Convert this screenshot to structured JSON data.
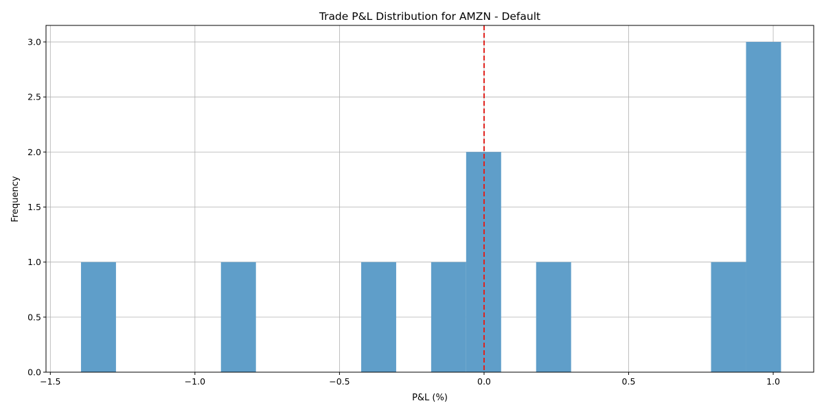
{
  "chart_data": {
    "type": "bar",
    "title": "Trade P&L Distribution for AMZN - Default",
    "xlabel": "P&L (%)",
    "ylabel": "Frequency",
    "xlim": [
      -1.515,
      1.14
    ],
    "ylim": [
      0,
      3.15
    ],
    "grid": true,
    "bar_color": "#5f9ec9",
    "reference_line": {
      "x": 0.0,
      "color": "#e0201b",
      "style": "dashed"
    },
    "xticks": [
      {
        "value": -1.5,
        "label": "−1.5"
      },
      {
        "value": -1.0,
        "label": "−1.0"
      },
      {
        "value": -0.5,
        "label": "−0.5"
      },
      {
        "value": 0.0,
        "label": "0.0"
      },
      {
        "value": 0.5,
        "label": "0.5"
      },
      {
        "value": 1.0,
        "label": "1.0"
      }
    ],
    "yticks": [
      {
        "value": 0.0,
        "label": "0.0"
      },
      {
        "value": 0.5,
        "label": "0.5"
      },
      {
        "value": 1.0,
        "label": "1.0"
      },
      {
        "value": 1.5,
        "label": "1.5"
      },
      {
        "value": 2.0,
        "label": "2.0"
      },
      {
        "value": 2.5,
        "label": "2.5"
      },
      {
        "value": 3.0,
        "label": "3.0"
      }
    ],
    "bins": [
      {
        "x0": -1.394,
        "x1": -1.273,
        "count": 1
      },
      {
        "x0": -0.91,
        "x1": -0.789,
        "count": 1
      },
      {
        "x0": -0.425,
        "x1": -0.304,
        "count": 1
      },
      {
        "x0": -0.183,
        "x1": -0.062,
        "count": 1
      },
      {
        "x0": -0.062,
        "x1": 0.059,
        "count": 2
      },
      {
        "x0": 0.18,
        "x1": 0.301,
        "count": 1
      },
      {
        "x0": 0.785,
        "x1": 0.906,
        "count": 1
      },
      {
        "x0": 0.906,
        "x1": 1.027,
        "count": 3
      }
    ]
  }
}
